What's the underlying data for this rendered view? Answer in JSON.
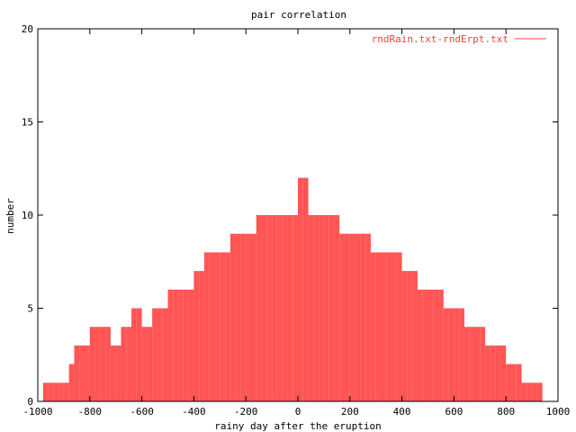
{
  "chart_data": {
    "type": "bar",
    "title": "pair correlation",
    "xlabel": "rainy day after the eruption",
    "ylabel": "number",
    "xlim": [
      -1000,
      1000
    ],
    "ylim": [
      0,
      20
    ],
    "x_ticks": [
      -1000,
      -800,
      -600,
      -400,
      -200,
      0,
      200,
      400,
      600,
      800,
      1000
    ],
    "y_ticks": [
      0,
      5,
      10,
      15,
      20
    ],
    "grid": false,
    "legend_position": "top-right",
    "colors": {
      "bars": "#ff5555",
      "legend_line": "#ff4040",
      "axes": "#000000"
    },
    "series": [
      {
        "name": "rndRain.txt-rndErpt.txt",
        "bin_width": 20,
        "x": [
          -970,
          -950,
          -930,
          -910,
          -890,
          -870,
          -850,
          -830,
          -810,
          -790,
          -770,
          -750,
          -730,
          -710,
          -690,
          -670,
          -650,
          -630,
          -610,
          -590,
          -570,
          -550,
          -530,
          -510,
          -490,
          -470,
          -450,
          -430,
          -410,
          -390,
          -370,
          -350,
          -330,
          -310,
          -290,
          -270,
          -250,
          -230,
          -210,
          -190,
          -170,
          -150,
          -130,
          -110,
          -90,
          -70,
          -50,
          -30,
          -10,
          10,
          30,
          50,
          70,
          90,
          110,
          130,
          150,
          170,
          190,
          210,
          230,
          250,
          270,
          290,
          310,
          330,
          350,
          370,
          390,
          410,
          430,
          450,
          470,
          490,
          510,
          530,
          550,
          570,
          590,
          610,
          630,
          650,
          670,
          690,
          710,
          730,
          750,
          770,
          790,
          810,
          830,
          850,
          870,
          890,
          910,
          930
        ],
        "values": [
          1,
          1,
          1,
          1,
          1,
          2,
          3,
          3,
          3,
          4,
          4,
          4,
          4,
          3,
          3,
          4,
          4,
          5,
          5,
          4,
          4,
          5,
          5,
          5,
          6,
          6,
          6,
          6,
          6,
          7,
          7,
          8,
          8,
          8,
          8,
          8,
          9,
          9,
          9,
          9,
          9,
          10,
          10,
          10,
          10,
          10,
          10,
          10,
          10,
          12,
          12,
          10,
          10,
          10,
          10,
          10,
          10,
          9,
          9,
          9,
          9,
          9,
          9,
          8,
          8,
          8,
          8,
          8,
          8,
          7,
          7,
          7,
          6,
          6,
          6,
          6,
          6,
          5,
          5,
          5,
          5,
          4,
          4,
          4,
          4,
          3,
          3,
          3,
          3,
          2,
          2,
          2,
          1,
          1,
          1,
          1
        ]
      }
    ]
  }
}
